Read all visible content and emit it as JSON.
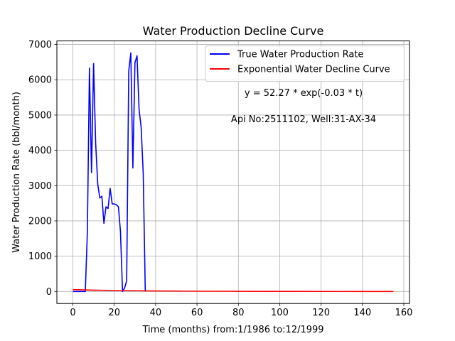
{
  "chart_data": {
    "type": "line",
    "title": "Water Production Decline Curve",
    "xlabel": "Time (months) from:1/1986 to:12/1999",
    "ylabel": "Water Production Rate (bbl/month)",
    "xlim": [
      -7.75,
      162.75
    ],
    "ylim": [
      -340,
      7100
    ],
    "xticks": [
      0,
      20,
      40,
      60,
      80,
      100,
      120,
      140,
      160
    ],
    "yticks": [
      0,
      1000,
      2000,
      3000,
      4000,
      5000,
      6000,
      7000
    ],
    "grid": true,
    "legend_position": "top-right",
    "annotations": [
      "y = 52.27 * exp(-0.03 * t)",
      "Api No:2511102, Well:31-AX-34"
    ],
    "series": [
      {
        "name": "True Water Production Rate",
        "color": "#0000ff",
        "x": [
          0,
          6,
          7,
          8,
          9,
          10,
          11,
          12,
          13,
          14,
          15,
          16,
          17,
          18,
          19,
          20,
          21,
          22,
          23,
          24,
          25,
          26,
          27,
          28,
          29,
          30,
          31,
          32,
          33,
          34,
          35
        ],
        "y": [
          0,
          0,
          1700,
          6330,
          3370,
          6460,
          4200,
          3050,
          2650,
          2700,
          1930,
          2400,
          2350,
          2920,
          2480,
          2480,
          2460,
          2400,
          1700,
          0,
          100,
          300,
          6250,
          6760,
          3500,
          6480,
          6680,
          5150,
          4650,
          3350,
          0
        ]
      },
      {
        "name": "Exponential Water Decline Curve",
        "color": "#ff0000",
        "x": [
          0,
          10,
          20,
          30,
          40,
          50,
          60,
          70,
          80,
          90,
          100,
          110,
          120,
          130,
          140,
          150,
          155
        ],
        "y": [
          52.27,
          38.72,
          28.69,
          21.25,
          15.74,
          11.66,
          8.64,
          6.4,
          4.74,
          3.51,
          2.6,
          1.93,
          1.43,
          1.06,
          0.78,
          0.58,
          0.5
        ]
      }
    ]
  }
}
